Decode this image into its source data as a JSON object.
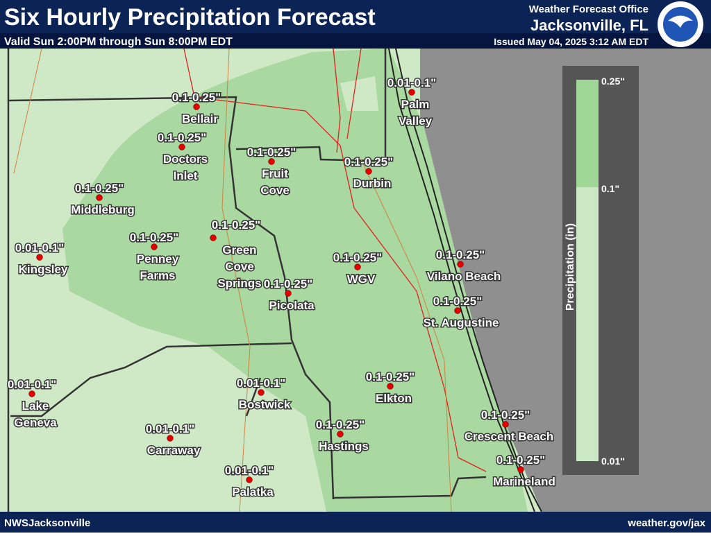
{
  "header": {
    "title": "Six Hourly Precipitation Forecast",
    "subtitle": "Valid Sun 2:00PM through Sun 8:00PM EDT",
    "office": "Weather Forecast Office",
    "city": "Jacksonville, FL",
    "issued": "Issued May 04, 2025 3:12 AM EDT"
  },
  "legend": {
    "title": "Precipitation (in)",
    "ticks": [
      "0.25\"",
      "0.1\"",
      "0.01\""
    ]
  },
  "locations": [
    {
      "name": [
        "Palm",
        "Valley"
      ],
      "value": "0.01-0.1\""
    },
    {
      "name": [
        "Bellair"
      ],
      "value": "0.1-0.25\""
    },
    {
      "name": [
        "Doctors",
        "Inlet"
      ],
      "value": "0.1-0.25\""
    },
    {
      "name": [
        "Fruit",
        "Cove"
      ],
      "value": "0.1-0.25\""
    },
    {
      "name": [
        "Durbin"
      ],
      "value": "0.1-0.25\""
    },
    {
      "name": [
        "Middleburg"
      ],
      "value": "0.1-0.25\""
    },
    {
      "name": [
        "Green",
        "Cove",
        "Springs"
      ],
      "value": "0.1-0.25\""
    },
    {
      "name": [
        "Penney",
        "Farms"
      ],
      "value": "0.1-0.25\""
    },
    {
      "name": [
        "Kingsley"
      ],
      "value": "0.01-0.1\""
    },
    {
      "name": [
        "WGV"
      ],
      "value": "0.1-0.25\""
    },
    {
      "name": [
        "Vilano Beach"
      ],
      "value": "0.1-0.25\""
    },
    {
      "name": [
        "Picolata"
      ],
      "value": "0.1-0.25\""
    },
    {
      "name": [
        "St. Augustine"
      ],
      "value": "0.1-0.25\""
    },
    {
      "name": [
        "Elkton"
      ],
      "value": "0.1-0.25\""
    },
    {
      "name": [
        "Lake",
        "Geneva"
      ],
      "value": "0.01-0.1\""
    },
    {
      "name": [
        "Bostwick"
      ],
      "value": "0.01-0.1\""
    },
    {
      "name": [
        "Hastings"
      ],
      "value": "0.1-0.25\""
    },
    {
      "name": [
        "Carraway"
      ],
      "value": "0.01-0.1\""
    },
    {
      "name": [
        "Crescent Beach"
      ],
      "value": "0.1-0.25\""
    },
    {
      "name": [
        "Palatka"
      ],
      "value": "0.01-0.1\""
    },
    {
      "name": [
        "Marineland"
      ],
      "value": "0.1-0.25\""
    }
  ],
  "footer": {
    "left": "NWSJacksonville",
    "right": "weather.gov/jax"
  }
}
